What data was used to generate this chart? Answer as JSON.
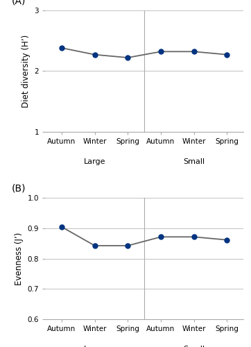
{
  "panel_A": {
    "label": "(A)",
    "ylabel": "Diet diversity (H’)",
    "x_values": [
      0,
      1,
      2,
      3,
      4,
      5
    ],
    "y_values": [
      2.38,
      2.27,
      2.22,
      2.32,
      2.32,
      2.27
    ],
    "ylim": [
      1,
      3
    ],
    "yticks": [
      1,
      2,
      3
    ]
  },
  "panel_B": {
    "label": "(B)",
    "ylabel": "Evenness (J’)",
    "x_values": [
      0,
      1,
      2,
      3,
      4,
      5
    ],
    "y_values": [
      0.905,
      0.843,
      0.843,
      0.872,
      0.872,
      0.862
    ],
    "ylim": [
      0.6,
      1.0
    ],
    "yticks": [
      0.6,
      0.7,
      0.8,
      0.9,
      1.0
    ]
  },
  "x_tick_labels": [
    "Autumn",
    "Winter",
    "Spring",
    "Autumn",
    "Winter",
    "Spring"
  ],
  "group_labels": [
    [
      "Large",
      1.0
    ],
    [
      "Small",
      4.0
    ]
  ],
  "line_color": "#666666",
  "marker_color": "#003380",
  "marker_size": 5,
  "line_width": 1.3,
  "spine_color": "#aaaaaa",
  "background_color": "#ffffff",
  "ylabel_fontsize": 8.5,
  "tick_fontsize": 7.5,
  "group_label_fontsize": 8,
  "panel_label_fontsize": 10
}
